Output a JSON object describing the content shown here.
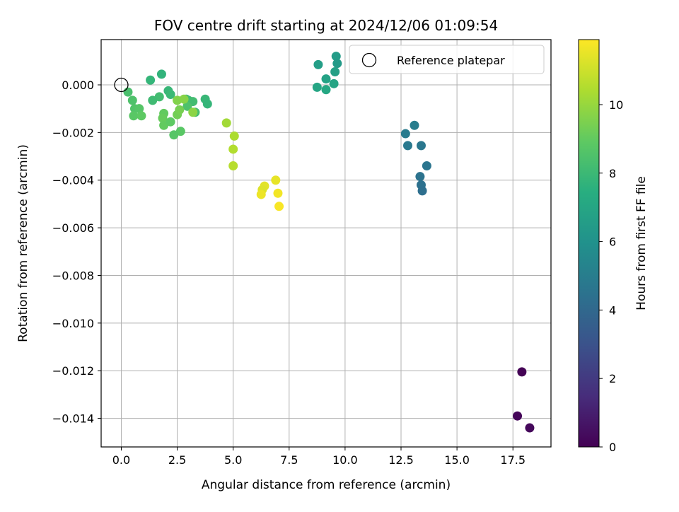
{
  "chart_data": {
    "type": "scatter",
    "title": "FOV centre drift starting at 2024/12/06 01:09:54",
    "xlabel": "Angular distance from reference (arcmin)",
    "ylabel": "Rotation from reference (arcmin)",
    "xlim": [
      -0.9,
      19.2
    ],
    "ylim": [
      -0.0152,
      0.0019
    ],
    "grid": true,
    "x_ticks": [
      0.0,
      2.5,
      5.0,
      7.5,
      10.0,
      12.5,
      15.0,
      17.5
    ],
    "x_tick_labels": [
      "0.0",
      "2.5",
      "5.0",
      "7.5",
      "10.0",
      "12.5",
      "15.0",
      "17.5"
    ],
    "y_ticks": [
      0.0,
      -0.002,
      -0.004,
      -0.006,
      -0.008,
      -0.01,
      -0.012,
      -0.014
    ],
    "y_tick_labels": [
      "0.000",
      "−0.002",
      "−0.004",
      "−0.006",
      "−0.008",
      "−0.010",
      "−0.012",
      "−0.014"
    ],
    "colorbar": {
      "label": "Hours from first FF file",
      "colormap": "viridis",
      "range": [
        0,
        11.9
      ],
      "ticks": [
        0,
        2,
        4,
        6,
        8,
        10
      ],
      "tick_labels": [
        "0",
        "2",
        "4",
        "6",
        "8",
        "10"
      ]
    },
    "legend": {
      "placement": "top-right",
      "entries": [
        {
          "label": "Reference platepar",
          "marker": "open-circle",
          "color": "#000000"
        }
      ]
    },
    "reference_point": {
      "x": 0.0,
      "y": 0.0,
      "label": "Reference platepar"
    },
    "points": [
      {
        "x": 17.9,
        "y": -0.01205,
        "hours": 0.05
      },
      {
        "x": 17.7,
        "y": -0.0139,
        "hours": 0.15
      },
      {
        "x": 18.25,
        "y": -0.0144,
        "hours": 0.25
      },
      {
        "x": 13.1,
        "y": -0.0017,
        "hours": 5.0
      },
      {
        "x": 12.7,
        "y": -0.00205,
        "hours": 4.9
      },
      {
        "x": 12.8,
        "y": -0.00255,
        "hours": 4.8
      },
      {
        "x": 13.4,
        "y": -0.00255,
        "hours": 4.7
      },
      {
        "x": 13.65,
        "y": -0.0034,
        "hours": 4.6
      },
      {
        "x": 13.35,
        "y": -0.00385,
        "hours": 4.5
      },
      {
        "x": 13.4,
        "y": -0.0042,
        "hours": 4.4
      },
      {
        "x": 13.45,
        "y": -0.00445,
        "hours": 4.3
      },
      {
        "x": 8.8,
        "y": 0.00085,
        "hours": 6.6
      },
      {
        "x": 9.6,
        "y": 0.0012,
        "hours": 6.5
      },
      {
        "x": 9.65,
        "y": 0.0009,
        "hours": 6.4
      },
      {
        "x": 9.55,
        "y": 0.00055,
        "hours": 6.7
      },
      {
        "x": 9.15,
        "y": 0.00025,
        "hours": 6.8
      },
      {
        "x": 9.5,
        "y": 5e-05,
        "hours": 6.9
      },
      {
        "x": 8.75,
        "y": -0.0001,
        "hours": 7.0
      },
      {
        "x": 9.15,
        "y": -0.0002,
        "hours": 7.1
      },
      {
        "x": 1.3,
        "y": 0.0002,
        "hours": 7.8
      },
      {
        "x": 1.8,
        "y": 0.00045,
        "hours": 7.7
      },
      {
        "x": 2.1,
        "y": -0.00025,
        "hours": 7.9
      },
      {
        "x": 2.2,
        "y": -0.0004,
        "hours": 8.0
      },
      {
        "x": 1.7,
        "y": -0.0005,
        "hours": 8.2
      },
      {
        "x": 1.4,
        "y": -0.00065,
        "hours": 8.1
      },
      {
        "x": 0.3,
        "y": -0.0003,
        "hours": 8.4
      },
      {
        "x": 0.5,
        "y": -0.00065,
        "hours": 8.5
      },
      {
        "x": 0.6,
        "y": -0.001,
        "hours": 8.6
      },
      {
        "x": 0.8,
        "y": -0.001,
        "hours": 8.7
      },
      {
        "x": 0.55,
        "y": -0.0013,
        "hours": 8.8
      },
      {
        "x": 0.9,
        "y": -0.0013,
        "hours": 8.9
      },
      {
        "x": 2.9,
        "y": -0.0006,
        "hours": 8.0
      },
      {
        "x": 3.0,
        "y": -0.00065,
        "hours": 8.1
      },
      {
        "x": 3.2,
        "y": -0.0007,
        "hours": 8.2
      },
      {
        "x": 3.3,
        "y": -0.00115,
        "hours": 8.3
      },
      {
        "x": 3.75,
        "y": -0.0006,
        "hours": 7.9
      },
      {
        "x": 3.85,
        "y": -0.0008,
        "hours": 7.8
      },
      {
        "x": 2.95,
        "y": -0.0009,
        "hours": 8.5
      },
      {
        "x": 1.9,
        "y": -0.0012,
        "hours": 9.0
      },
      {
        "x": 1.85,
        "y": -0.0014,
        "hours": 9.1
      },
      {
        "x": 1.9,
        "y": -0.0017,
        "hours": 9.0
      },
      {
        "x": 2.2,
        "y": -0.00155,
        "hours": 8.9
      },
      {
        "x": 2.65,
        "y": -0.00195,
        "hours": 8.8
      },
      {
        "x": 2.35,
        "y": -0.0021,
        "hours": 8.7
      },
      {
        "x": 2.5,
        "y": -0.00125,
        "hours": 9.3
      },
      {
        "x": 2.6,
        "y": -0.00105,
        "hours": 9.4
      },
      {
        "x": 2.5,
        "y": -0.00065,
        "hours": 9.6
      },
      {
        "x": 2.8,
        "y": -0.0006,
        "hours": 9.7
      },
      {
        "x": 3.2,
        "y": -0.00115,
        "hours": 9.8
      },
      {
        "x": 4.7,
        "y": -0.0016,
        "hours": 10.2
      },
      {
        "x": 5.05,
        "y": -0.00215,
        "hours": 10.4
      },
      {
        "x": 5.0,
        "y": -0.0027,
        "hours": 10.5
      },
      {
        "x": 5.0,
        "y": -0.0034,
        "hours": 10.6
      },
      {
        "x": 6.9,
        "y": -0.004,
        "hours": 11.5
      },
      {
        "x": 6.4,
        "y": -0.00425,
        "hours": 11.4
      },
      {
        "x": 6.3,
        "y": -0.0044,
        "hours": 11.3
      },
      {
        "x": 6.25,
        "y": -0.0046,
        "hours": 11.6
      },
      {
        "x": 7.0,
        "y": -0.00455,
        "hours": 11.7
      },
      {
        "x": 7.05,
        "y": -0.0051,
        "hours": 11.8
      }
    ]
  }
}
